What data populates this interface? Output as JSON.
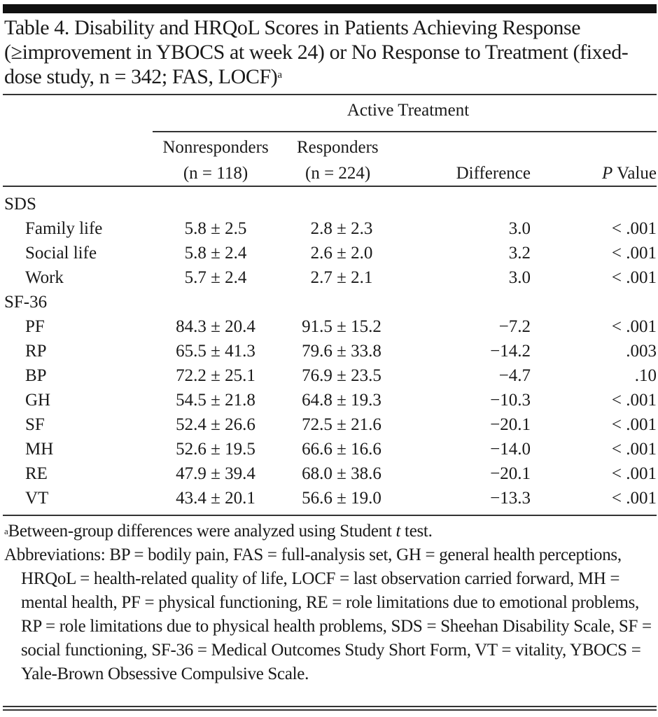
{
  "title": "Table 4. Disability and HRQoL Scores in Patients Achieving Response (≥improvement in YBOCS at week 24) or No Response to Treatment (fixed-dose study, n = 342; FAS, LOCF)",
  "title_sup": "a",
  "spanner": "Active Treatment",
  "columns": {
    "non_label": "Nonresponders",
    "non_n": "(n = 118)",
    "resp_label": "Responders",
    "resp_n": "(n = 224)",
    "diff": "Difference",
    "p_italic": "P",
    "p_rest": " Value"
  },
  "groups": [
    {
      "name": "SDS",
      "rows": [
        {
          "label": "Family life",
          "non": "5.8 ± 2.5",
          "resp": "2.8 ± 2.3",
          "diff": "3.0",
          "p": "< .001"
        },
        {
          "label": "Social life",
          "non": "5.8 ± 2.4",
          "resp": "2.6 ± 2.0",
          "diff": "3.2",
          "p": "< .001"
        },
        {
          "label": "Work",
          "non": "5.7 ± 2.4",
          "resp": "2.7 ± 2.1",
          "diff": "3.0",
          "p": "< .001"
        }
      ]
    },
    {
      "name": "SF-36",
      "rows": [
        {
          "label": "PF",
          "non": "84.3 ± 20.4",
          "resp": "91.5 ± 15.2",
          "diff": "−7.2",
          "p": "< .001"
        },
        {
          "label": "RP",
          "non": "65.5 ± 41.3",
          "resp": "79.6 ± 33.8",
          "diff": "−14.2",
          "p": ".003"
        },
        {
          "label": "BP",
          "non": "72.2 ± 25.1",
          "resp": "76.9 ± 23.5",
          "diff": "−4.7",
          "p": ".10"
        },
        {
          "label": "GH",
          "non": "54.5 ± 21.8",
          "resp": "64.8 ± 19.3",
          "diff": "−10.3",
          "p": "< .001"
        },
        {
          "label": "SF",
          "non": "52.4 ± 26.6",
          "resp": "72.5 ± 21.6",
          "diff": "−20.1",
          "p": "< .001"
        },
        {
          "label": "MH",
          "non": "52.6 ± 19.5",
          "resp": "66.6 ± 16.6",
          "diff": "−14.0",
          "p": "< .001"
        },
        {
          "label": "RE",
          "non": "47.9 ± 39.4",
          "resp": "68.0 ± 38.6",
          "diff": "−20.1",
          "p": "< .001"
        },
        {
          "label": "VT",
          "non": "43.4 ± 20.1",
          "resp": "56.6 ± 19.0",
          "diff": "−13.3",
          "p": "< .001"
        }
      ]
    }
  ],
  "footnotes": {
    "a_sup": "a",
    "a_pre": "Between-group differences were analyzed using Student ",
    "a_italic": "t",
    "a_post": " test.",
    "abbreviations": "Abbreviations: BP = bodily pain, FAS = full-analysis set, GH = general health perceptions, HRQoL = health-related quality of life, LOCF = last observation carried forward, MH = mental health, PF = physical functioning, RE = role limitations due to emotional problems, RP = role limitations due to physical health problems, SDS = Sheehan Disability Scale, SF = social functioning, SF-36 = Medical Outcomes Study Short Form, VT = vitality, YBOCS = Yale-Brown Obsessive Compulsive Scale."
  }
}
